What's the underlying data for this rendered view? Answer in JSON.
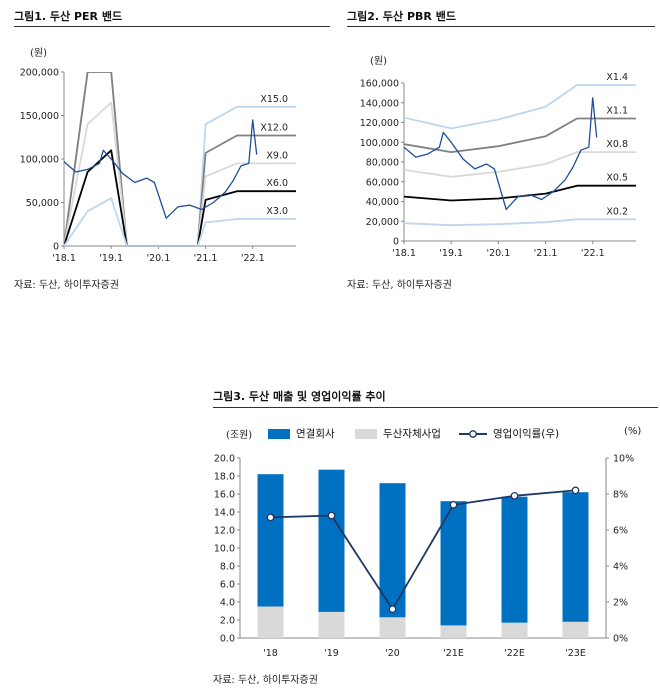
{
  "figure1": {
    "title": "그림1.   두산 PER 밴드",
    "unit": "(원)",
    "source": "자료: 두산, 하이투자증권",
    "y_ticks": [
      "200,000",
      "150,000",
      "100,000",
      "50,000",
      "0"
    ],
    "x_ticks": [
      "'18.1",
      "'19.1",
      "'20.1",
      "'21.1",
      "'22.1"
    ],
    "band_labels": [
      "X15.0",
      "X12.0",
      "X9.0",
      "X6.0",
      "X3.0"
    ]
  },
  "figure2": {
    "title": "그림2.   두산 PBR 밴드",
    "unit": "(원)",
    "source": "자료: 두산, 하이투자증권",
    "y_ticks": [
      "160,000",
      "140,000",
      "120,000",
      "100,000",
      "80,000",
      "60,000",
      "40,000",
      "20,000",
      "0"
    ],
    "x_ticks": [
      "'18.1",
      "'19.1",
      "'20.1",
      "'21.1",
      "'22.1"
    ],
    "band_labels": [
      "X1.4",
      "X1.1",
      "X0.8",
      "X0.5",
      "X0.2"
    ]
  },
  "figure3": {
    "title": "그림3.   두산 매출 및 영업이익률 추이",
    "unit_left": "(조원)",
    "unit_right": "(%)",
    "source": "자료: 두산, 하이투자증권",
    "legend": {
      "s1": "연결회사",
      "s2": "두산자체사업",
      "s3": "영업이익률(우)"
    },
    "left_ticks": [
      "20.0",
      "18.0",
      "16.0",
      "14.0",
      "12.0",
      "10.0",
      "8.0",
      "6.0",
      "4.0",
      "2.0",
      "0.0"
    ],
    "right_ticks": [
      "10%",
      "8%",
      "6%",
      "4%",
      "2%",
      "0%"
    ],
    "x_ticks": [
      "'18",
      "'19",
      "'20",
      "'21E",
      "'22E",
      "'23E"
    ]
  },
  "colors": {
    "blue": "#0070C0",
    "gray": "#D9D9D9",
    "navy": "#1F3864",
    "price": "#1F4E9A",
    "band_lightest": "#BDD7EE",
    "band_light": "#D9D9D9",
    "band_mid": "#808080",
    "band_dark": "#000000"
  },
  "chart_data": [
    {
      "type": "line",
      "title": "두산 PER 밴드",
      "ylabel": "(원)",
      "ylim": [
        0,
        200000
      ],
      "x_range": [
        "2018-01",
        "2022-12"
      ],
      "series": [
        {
          "name": "X15.0",
          "points": [
            [
              "2018-01",
              0
            ],
            [
              "2018-07",
              200000
            ],
            [
              "2019-01",
              200000
            ],
            [
              "2019-05",
              0
            ],
            [
              "2020-11",
              0
            ],
            [
              "2021-01",
              140000
            ],
            [
              "2021-09",
              160000
            ],
            [
              "2022-12",
              160000
            ]
          ]
        },
        {
          "name": "X12.0",
          "points": [
            [
              "2018-01",
              0
            ],
            [
              "2018-07",
              200000
            ],
            [
              "2019-01",
              200000
            ],
            [
              "2019-05",
              0
            ],
            [
              "2020-11",
              0
            ],
            [
              "2021-01",
              107000
            ],
            [
              "2021-09",
              127000
            ],
            [
              "2022-12",
              127000
            ]
          ]
        },
        {
          "name": "X9.0",
          "points": [
            [
              "2018-01",
              0
            ],
            [
              "2018-07",
              140000
            ],
            [
              "2019-01",
              165000
            ],
            [
              "2019-05",
              0
            ],
            [
              "2020-11",
              0
            ],
            [
              "2021-01",
              80000
            ],
            [
              "2021-09",
              95000
            ],
            [
              "2022-12",
              95000
            ]
          ]
        },
        {
          "name": "X6.0",
          "points": [
            [
              "2018-01",
              0
            ],
            [
              "2018-07",
              85000
            ],
            [
              "2019-01",
              110000
            ],
            [
              "2019-05",
              0
            ],
            [
              "2020-11",
              0
            ],
            [
              "2021-01",
              53000
            ],
            [
              "2021-09",
              63000
            ],
            [
              "2022-12",
              63000
            ]
          ]
        },
        {
          "name": "X3.0",
          "points": [
            [
              "2018-01",
              0
            ],
            [
              "2018-07",
              40000
            ],
            [
              "2019-01",
              55000
            ],
            [
              "2019-05",
              0
            ],
            [
              "2020-11",
              0
            ],
            [
              "2021-01",
              27000
            ],
            [
              "2021-09",
              31000
            ],
            [
              "2022-12",
              31000
            ]
          ]
        },
        {
          "points": [
            [
              "2018-01",
              97000
            ],
            [
              "2018-04",
              85000
            ],
            [
              "2018-07",
              88000
            ],
            [
              "2018-10",
              95000
            ],
            [
              "2018-11",
              110000
            ],
            [
              "2019-01",
              100000
            ],
            [
              "2019-04",
              83000
            ],
            [
              "2019-07",
              73000
            ],
            [
              "2019-10",
              78000
            ],
            [
              "2019-12",
              73000
            ],
            [
              "2020-03",
              32000
            ],
            [
              "2020-06",
              45000
            ],
            [
              "2020-09",
              47000
            ],
            [
              "2020-12",
              42000
            ],
            [
              "2021-03",
              50000
            ],
            [
              "2021-06",
              62000
            ],
            [
              "2021-08",
              75000
            ],
            [
              "2021-10",
              92000
            ],
            [
              "2021-12",
              95000
            ],
            [
              "2022-01",
              145000
            ],
            [
              "2022-02",
              105000
            ]
          ]
        }
      ]
    },
    {
      "type": "line",
      "title": "두산 PBR 밴드",
      "ylabel": "(원)",
      "ylim": [
        0,
        160000
      ],
      "x_range": [
        "2018-01",
        "2022-12"
      ],
      "series": [
        {
          "name": "X1.4",
          "points": [
            [
              "2018-01",
              125000
            ],
            [
              "2019-01",
              114000
            ],
            [
              "2020-01",
              123000
            ],
            [
              "2021-01",
              136000
            ],
            [
              "2021-09",
              158000
            ],
            [
              "2022-12",
              158000
            ]
          ]
        },
        {
          "name": "X1.1",
          "points": [
            [
              "2018-01",
              98000
            ],
            [
              "2019-01",
              90000
            ],
            [
              "2020-01",
              96000
            ],
            [
              "2021-01",
              106000
            ],
            [
              "2021-09",
              124000
            ],
            [
              "2022-12",
              124000
            ]
          ]
        },
        {
          "name": "X0.8",
          "points": [
            [
              "2018-01",
              72000
            ],
            [
              "2019-01",
              65000
            ],
            [
              "2020-01",
              70000
            ],
            [
              "2021-01",
              78000
            ],
            [
              "2021-09",
              90000
            ],
            [
              "2022-12",
              90000
            ]
          ]
        },
        {
          "name": "X0.5",
          "points": [
            [
              "2018-01",
              45000
            ],
            [
              "2019-01",
              41000
            ],
            [
              "2020-01",
              43000
            ],
            [
              "2021-01",
              48000
            ],
            [
              "2021-09",
              56000
            ],
            [
              "2022-12",
              56000
            ]
          ]
        },
        {
          "name": "X0.2",
          "points": [
            [
              "2018-01",
              18000
            ],
            [
              "2019-01",
              16000
            ],
            [
              "2020-01",
              17000
            ],
            [
              "2021-01",
              19000
            ],
            [
              "2021-09",
              22000
            ],
            [
              "2022-12",
              22000
            ]
          ]
        },
        {
          "points": [
            [
              "2018-01",
              95000
            ],
            [
              "2018-04",
              85000
            ],
            [
              "2018-07",
              88000
            ],
            [
              "2018-10",
              95000
            ],
            [
              "2018-11",
              110000
            ],
            [
              "2019-01",
              100000
            ],
            [
              "2019-04",
              83000
            ],
            [
              "2019-07",
              73000
            ],
            [
              "2019-10",
              78000
            ],
            [
              "2019-12",
              73000
            ],
            [
              "2020-03",
              32000
            ],
            [
              "2020-06",
              45000
            ],
            [
              "2020-09",
              47000
            ],
            [
              "2020-12",
              42000
            ],
            [
              "2021-03",
              50000
            ],
            [
              "2021-06",
              62000
            ],
            [
              "2021-08",
              75000
            ],
            [
              "2021-10",
              92000
            ],
            [
              "2021-12",
              95000
            ],
            [
              "2022-01",
              145000
            ],
            [
              "2022-02",
              105000
            ]
          ]
        }
      ]
    },
    {
      "type": "bar",
      "title": "두산 매출 및 영업이익률 추이",
      "categories": [
        "'18",
        "'19",
        "'20",
        "'21E",
        "'22E",
        "'23E"
      ],
      "ylabel": "(조원)",
      "ylim": [
        0,
        20
      ],
      "y2label": "(%)",
      "y2lim": [
        0,
        10
      ],
      "series": [
        {
          "name": "연결회사",
          "type": "bar",
          "stack": true,
          "values": [
            14.7,
            15.8,
            14.9,
            13.8,
            14.0,
            14.4
          ]
        },
        {
          "name": "두산자체사업",
          "type": "bar",
          "stack": true,
          "values": [
            3.5,
            2.9,
            2.3,
            1.4,
            1.7,
            1.8
          ]
        },
        {
          "name": "영업이익률(우)",
          "type": "line",
          "axis": "right",
          "values": [
            6.7,
            6.8,
            1.6,
            7.4,
            7.9,
            8.2
          ]
        }
      ]
    }
  ]
}
